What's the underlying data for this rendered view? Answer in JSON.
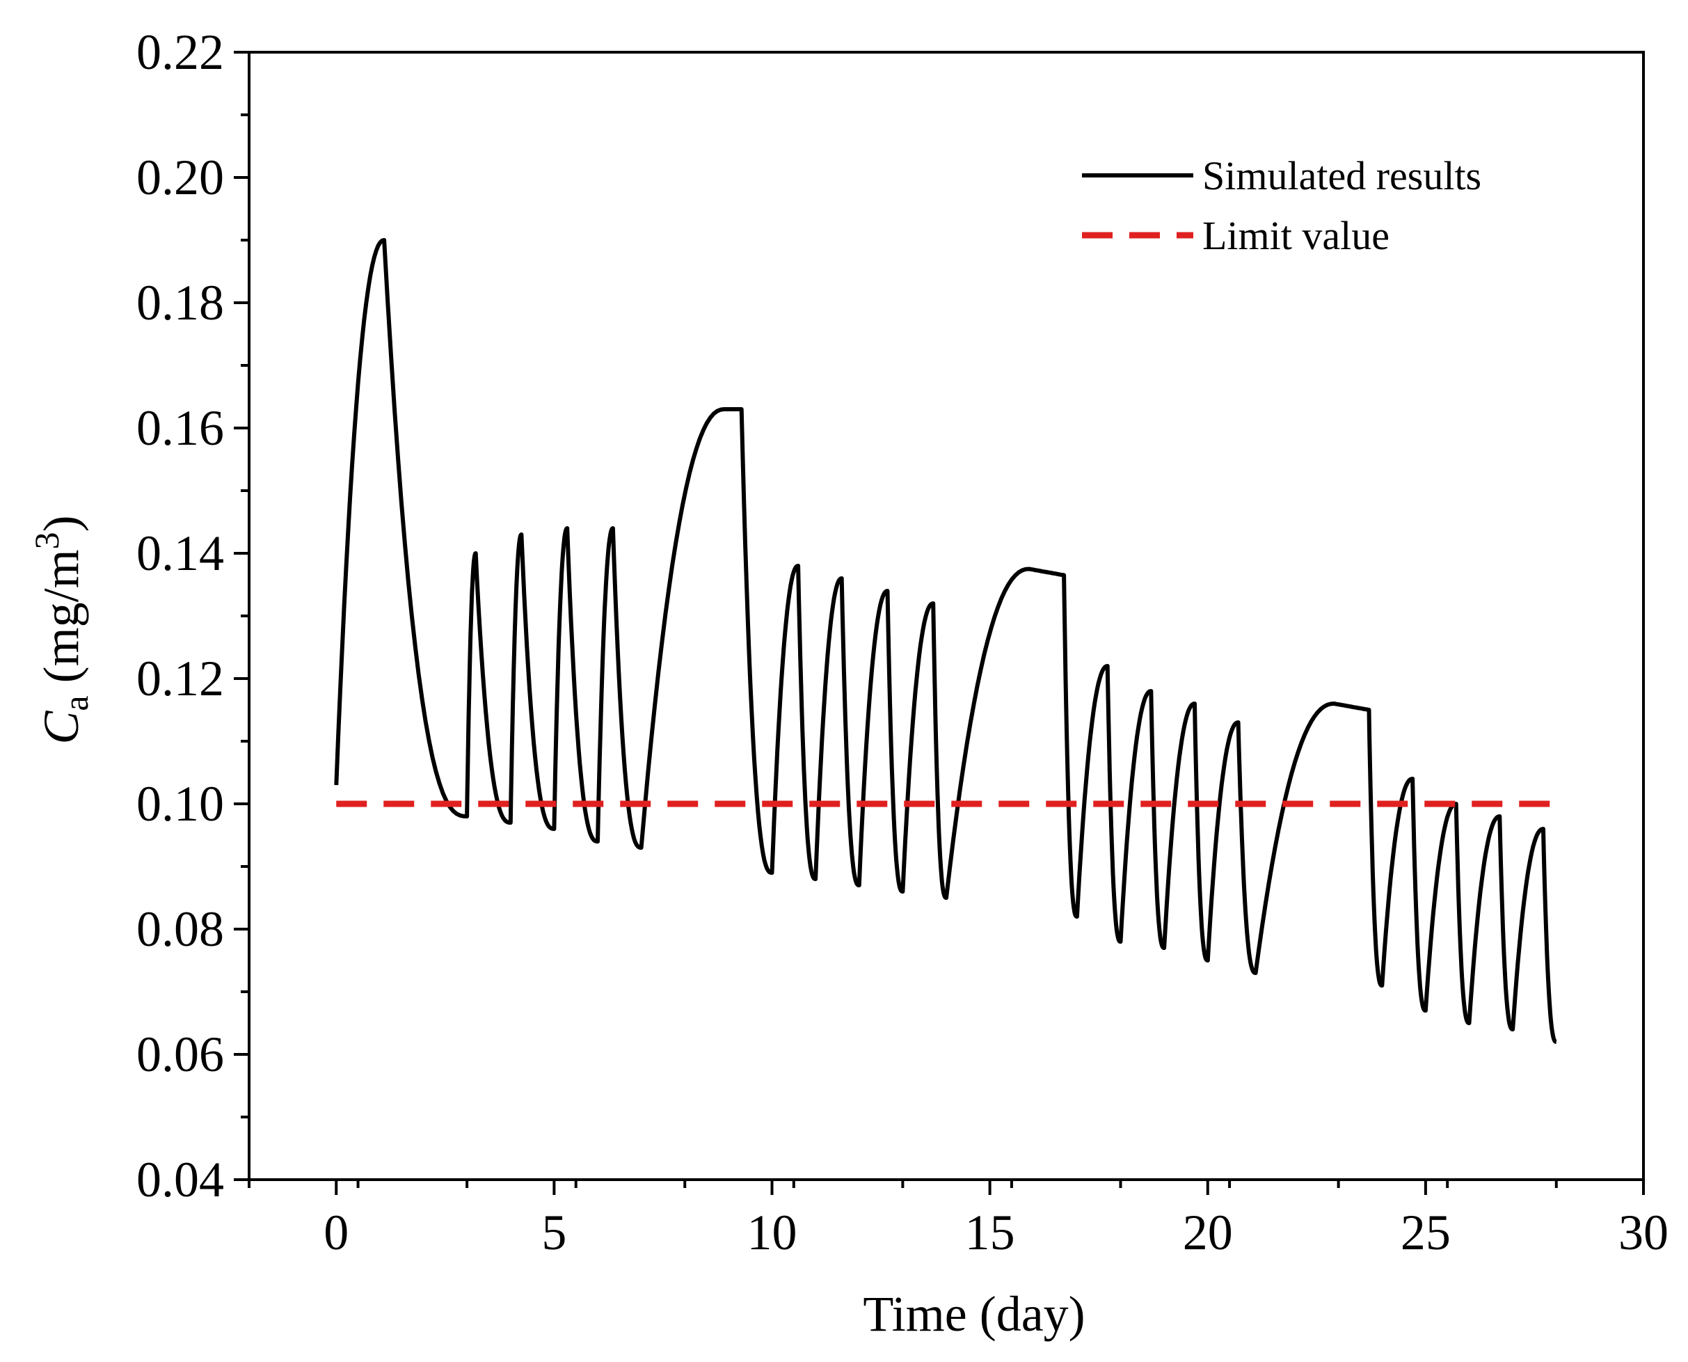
{
  "chart_data": {
    "type": "line",
    "title": "",
    "xlabel": "Time (day)",
    "ylabel": {
      "symbol": "C",
      "subscript": "a",
      "units": "(mg/m",
      "units_sup": "3",
      "units_close": ")"
    },
    "xlim": [
      -2,
      30
    ],
    "ylim": [
      0.04,
      0.22
    ],
    "xticks": [
      0,
      5,
      10,
      15,
      20,
      25,
      30
    ],
    "xtick_labels": [
      "0",
      "5",
      "10",
      "15",
      "20",
      "25",
      "30"
    ],
    "yticks": [
      0.04,
      0.06,
      0.08,
      0.1,
      0.12,
      0.14,
      0.16,
      0.18,
      0.2,
      0.22
    ],
    "ytick_labels": [
      "0.04",
      "0.06",
      "0.08",
      "0.10",
      "0.12",
      "0.14",
      "0.16",
      "0.18",
      "0.20",
      "0.22"
    ],
    "legend_position": "top-right",
    "series": [
      {
        "name": "Simulated results",
        "style": "solid",
        "color": "#000000",
        "segments": [
          {
            "type": "rise",
            "x0": 0.0,
            "x1": 1.1,
            "y0": 0.103,
            "y1": 0.19
          },
          {
            "type": "decay",
            "x0": 1.1,
            "x1": 3.0,
            "y0": 0.19,
            "y1": 0.098
          },
          {
            "type": "rise",
            "x0": 3.0,
            "x1": 3.2,
            "y0": 0.098,
            "y1": 0.14
          },
          {
            "type": "decay",
            "x0": 3.2,
            "x1": 4.0,
            "y0": 0.14,
            "y1": 0.097
          },
          {
            "type": "rise",
            "x0": 4.0,
            "x1": 4.25,
            "y0": 0.097,
            "y1": 0.143
          },
          {
            "type": "decay",
            "x0": 4.25,
            "x1": 5.0,
            "y0": 0.143,
            "y1": 0.096
          },
          {
            "type": "rise",
            "x0": 5.0,
            "x1": 5.3,
            "y0": 0.096,
            "y1": 0.144
          },
          {
            "type": "decay",
            "x0": 5.3,
            "x1": 6.0,
            "y0": 0.144,
            "y1": 0.094
          },
          {
            "type": "rise",
            "x0": 6.0,
            "x1": 6.35,
            "y0": 0.094,
            "y1": 0.144
          },
          {
            "type": "decay",
            "x0": 6.35,
            "x1": 7.0,
            "y0": 0.144,
            "y1": 0.093
          },
          {
            "type": "rise",
            "x0": 7.0,
            "x1": 8.9,
            "y0": 0.093,
            "y1": 0.163
          },
          {
            "type": "flat",
            "x0": 8.9,
            "x1": 9.3,
            "y0": 0.163,
            "y1": 0.163
          },
          {
            "type": "decay",
            "x0": 9.3,
            "x1": 10.0,
            "y0": 0.163,
            "y1": 0.089
          },
          {
            "type": "rise",
            "x0": 10.0,
            "x1": 10.6,
            "y0": 0.089,
            "y1": 0.138
          },
          {
            "type": "decay",
            "x0": 10.6,
            "x1": 11.0,
            "y0": 0.138,
            "y1": 0.088
          },
          {
            "type": "rise",
            "x0": 11.0,
            "x1": 11.6,
            "y0": 0.088,
            "y1": 0.136
          },
          {
            "type": "decay",
            "x0": 11.6,
            "x1": 12.0,
            "y0": 0.136,
            "y1": 0.087
          },
          {
            "type": "rise",
            "x0": 12.0,
            "x1": 12.65,
            "y0": 0.087,
            "y1": 0.134
          },
          {
            "type": "decay",
            "x0": 12.65,
            "x1": 13.0,
            "y0": 0.134,
            "y1": 0.086
          },
          {
            "type": "rise",
            "x0": 13.0,
            "x1": 13.7,
            "y0": 0.086,
            "y1": 0.132
          },
          {
            "type": "decay",
            "x0": 13.7,
            "x1": 14.0,
            "y0": 0.132,
            "y1": 0.085
          },
          {
            "type": "rise",
            "x0": 14.0,
            "x1": 15.9,
            "y0": 0.085,
            "y1": 0.1375
          },
          {
            "type": "flat",
            "x0": 15.9,
            "x1": 16.7,
            "y0": 0.1375,
            "y1": 0.1365
          },
          {
            "type": "decay",
            "x0": 16.7,
            "x1": 17.0,
            "y0": 0.1365,
            "y1": 0.082
          },
          {
            "type": "rise",
            "x0": 17.0,
            "x1": 17.7,
            "y0": 0.082,
            "y1": 0.122
          },
          {
            "type": "decay",
            "x0": 17.7,
            "x1": 18.0,
            "y0": 0.122,
            "y1": 0.078
          },
          {
            "type": "rise",
            "x0": 18.0,
            "x1": 18.7,
            "y0": 0.078,
            "y1": 0.118
          },
          {
            "type": "decay",
            "x0": 18.7,
            "x1": 19.0,
            "y0": 0.118,
            "y1": 0.077
          },
          {
            "type": "rise",
            "x0": 19.0,
            "x1": 19.7,
            "y0": 0.077,
            "y1": 0.116
          },
          {
            "type": "decay",
            "x0": 19.7,
            "x1": 20.0,
            "y0": 0.116,
            "y1": 0.075
          },
          {
            "type": "rise",
            "x0": 20.0,
            "x1": 20.7,
            "y0": 0.075,
            "y1": 0.113
          },
          {
            "type": "decay",
            "x0": 20.7,
            "x1": 21.1,
            "y0": 0.113,
            "y1": 0.073
          },
          {
            "type": "rise",
            "x0": 21.1,
            "x1": 22.9,
            "y0": 0.073,
            "y1": 0.116
          },
          {
            "type": "flat",
            "x0": 22.9,
            "x1": 23.7,
            "y0": 0.116,
            "y1": 0.115
          },
          {
            "type": "decay",
            "x0": 23.7,
            "x1": 24.0,
            "y0": 0.115,
            "y1": 0.071
          },
          {
            "type": "rise",
            "x0": 24.0,
            "x1": 24.7,
            "y0": 0.071,
            "y1": 0.104
          },
          {
            "type": "decay",
            "x0": 24.7,
            "x1": 25.0,
            "y0": 0.104,
            "y1": 0.067
          },
          {
            "type": "rise",
            "x0": 25.0,
            "x1": 25.7,
            "y0": 0.067,
            "y1": 0.1
          },
          {
            "type": "decay",
            "x0": 25.7,
            "x1": 26.0,
            "y0": 0.1,
            "y1": 0.065
          },
          {
            "type": "rise",
            "x0": 26.0,
            "x1": 26.7,
            "y0": 0.065,
            "y1": 0.098
          },
          {
            "type": "decay",
            "x0": 26.7,
            "x1": 27.0,
            "y0": 0.098,
            "y1": 0.064
          },
          {
            "type": "rise",
            "x0": 27.0,
            "x1": 27.7,
            "y0": 0.064,
            "y1": 0.096
          },
          {
            "type": "decay",
            "x0": 27.7,
            "x1": 28.0,
            "y0": 0.096,
            "y1": 0.062
          }
        ]
      },
      {
        "name": "Limit value",
        "style": "dashed",
        "color": "#e02020",
        "x": [
          0,
          28
        ],
        "y": [
          0.1,
          0.1
        ]
      }
    ]
  }
}
